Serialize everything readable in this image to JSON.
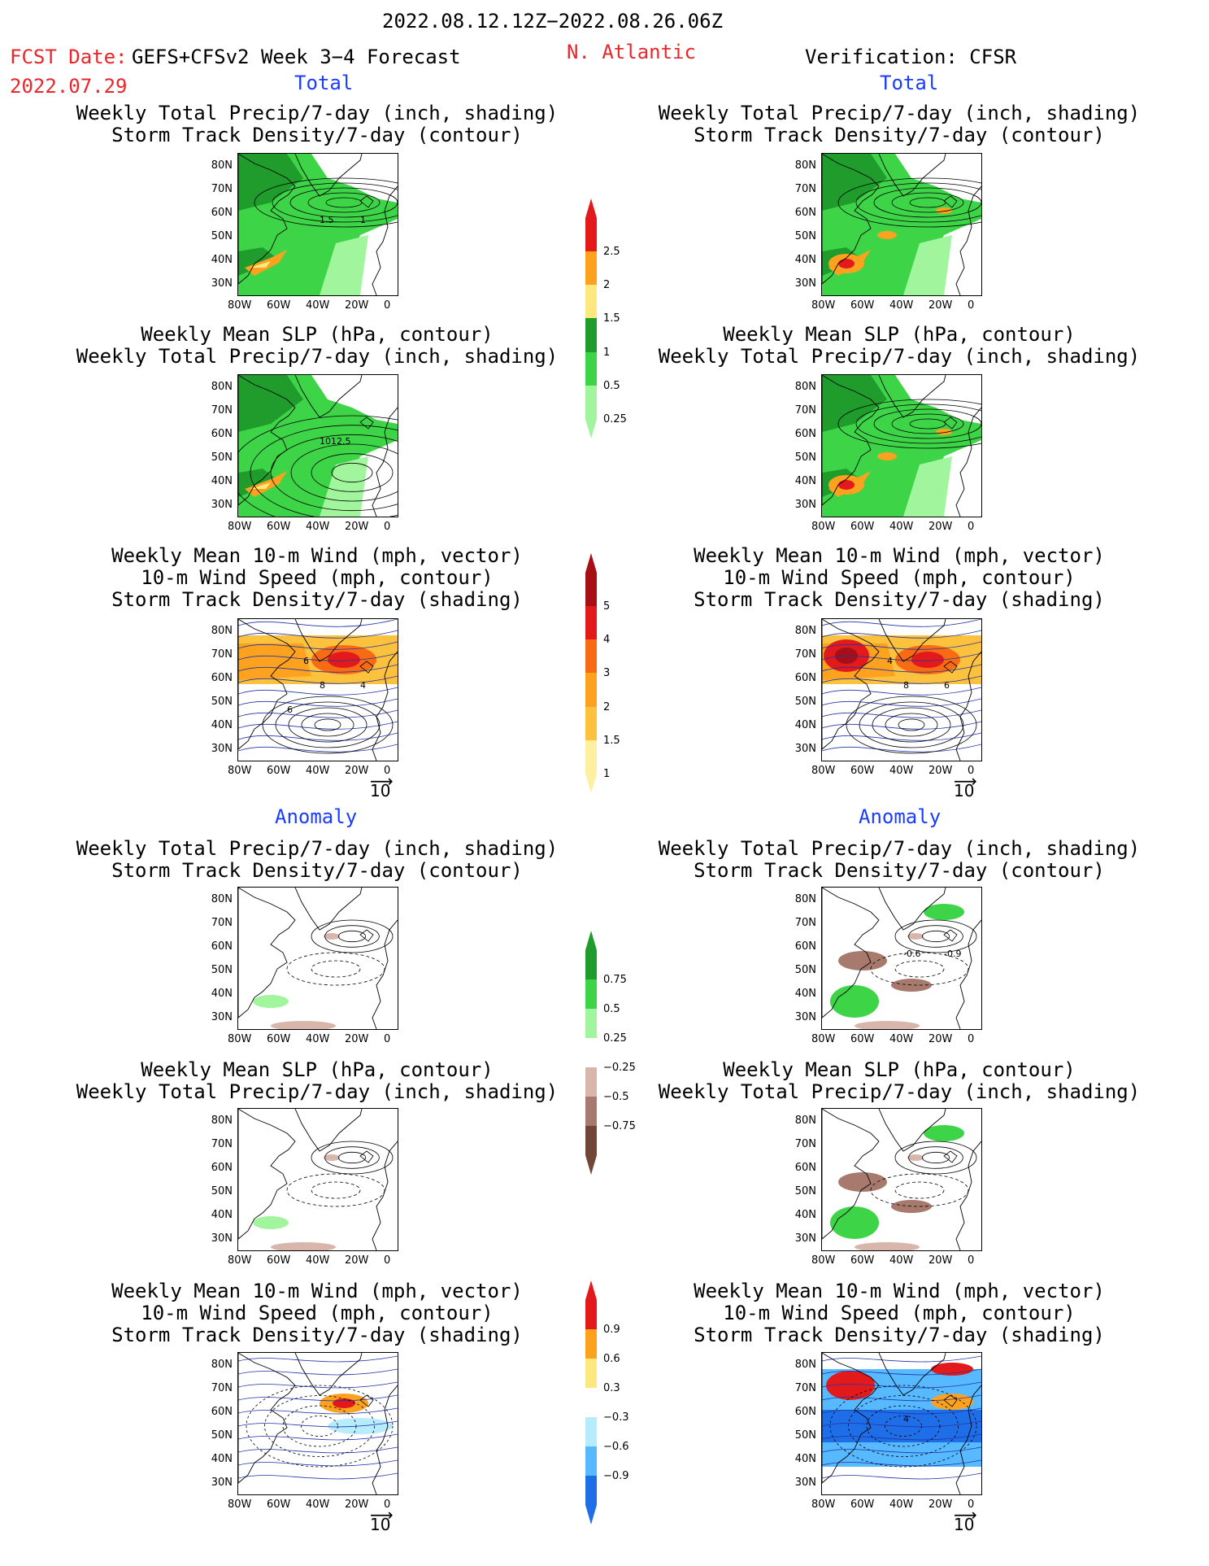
{
  "header": {
    "period": "2022.08.12.12Z−2022.08.26.06Z",
    "fcst_label": "FCST Date:",
    "fcst_model": "GEFS+CFSv2 Week 3−4 Forecast",
    "fcst_date": "2022.07.29",
    "region": "N. Atlantic",
    "verification": "Verification: CFSR",
    "total_left": "Total",
    "total_right": "Total",
    "anomaly_left": "Anomaly",
    "anomaly_right": "Anomaly"
  },
  "panel_titles": {
    "precip_storm": "Weekly Total Precip/7-day (inch, shading)\nStorm Track Density/7-day (contour)",
    "slp_precip": "Weekly Mean SLP (hPa, contour)\nWeekly Total Precip/7-day (inch, shading)",
    "wind_storm": "Weekly Mean 10-m Wind (mph, vector)\n10-m Wind Speed (mph, contour)\nStorm Track Density/7-day (shading)"
  },
  "axis": {
    "lat_ticks": [
      "80N",
      "70N",
      "60N",
      "50N",
      "40N",
      "30N"
    ],
    "lon_ticks": [
      "80W",
      "60W",
      "40W",
      "20W",
      "0"
    ]
  },
  "map_labels": {
    "p1": [
      "1.5",
      "1"
    ],
    "p2": [
      "1012.5"
    ],
    "p3": [
      "8",
      "4",
      "6",
      "6"
    ],
    "r3": [
      "8",
      "6",
      "4"
    ],
    "r4": [
      "-0.6",
      "-0.9"
    ],
    "r6": [
      "4"
    ]
  },
  "vector_ref": "10",
  "colorbars": {
    "precip_total": {
      "labels": [
        "2.5",
        "2",
        "1.5",
        "1",
        "0.5",
        "0.25"
      ],
      "colors": [
        "#e31a1c",
        "#fda21f",
        "#fde77f",
        "#1f9c2c",
        "#3ed447",
        "#a1f59c"
      ]
    },
    "storm_total": {
      "labels": [
        "5",
        "4",
        "3",
        "2",
        "1.5",
        "1"
      ],
      "colors": [
        "#a50f15",
        "#e31a1c",
        "#f96b12",
        "#fda21f",
        "#fcc23d",
        "#fff0a0"
      ]
    },
    "precip_anom": {
      "labels": [
        "0.75",
        "0.5",
        "0.25",
        "−0.25",
        "−0.5",
        "−0.75"
      ],
      "colors": [
        "#1f9c2c",
        "#3ed447",
        "#a1f59c",
        "#ffffff",
        "#d8b6ab",
        "#a8796d",
        "#6f4638"
      ]
    },
    "storm_anom": {
      "labels": [
        "0.9",
        "0.6",
        "0.3",
        "−0.3",
        "−0.6",
        "−0.9"
      ],
      "colors": [
        "#e31a1c",
        "#fda21f",
        "#fde77f",
        "#ffffff",
        "#b7ecff",
        "#57b9ff",
        "#1e6ee8"
      ]
    }
  }
}
